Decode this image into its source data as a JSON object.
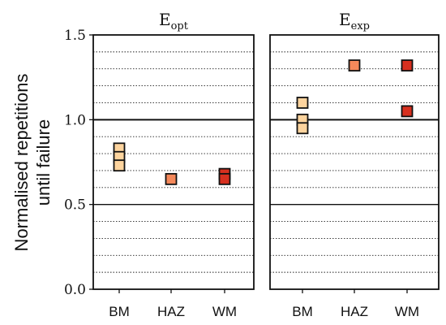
{
  "chart_data": {
    "type": "scatter",
    "ylabel_lines": [
      "Normalised repetitions",
      "until failure"
    ],
    "ylim": [
      0,
      1.5
    ],
    "yticks": [
      {
        "value": 0,
        "label": "0.0"
      },
      {
        "value": 0.5,
        "label": "0.5"
      },
      {
        "value": 1.0,
        "label": "1.0"
      },
      {
        "value": 1.5,
        "label": "1.5"
      }
    ],
    "minor_gridlines": [
      0.1,
      0.2,
      0.3,
      0.4,
      0.6,
      0.7,
      0.8,
      0.9,
      1.1,
      1.2,
      1.3,
      1.4
    ],
    "solid_reference_lines": [
      0.5,
      1.0
    ],
    "categories": [
      "BM",
      "HAZ",
      "WM"
    ],
    "category_colors": {
      "BM": "#fdd49e",
      "HAZ": "#f4885a",
      "WM": "#d7301f"
    },
    "marker_edge_color": "#111111",
    "panels": [
      {
        "title_main": "E",
        "title_sub": "opt",
        "points": [
          {
            "category": "BM",
            "values": [
              0.83,
              0.78,
              0.73
            ]
          },
          {
            "category": "HAZ",
            "values": [
              0.65
            ]
          },
          {
            "category": "WM",
            "values": [
              0.68,
              0.65
            ]
          }
        ]
      },
      {
        "title_main": "E",
        "title_sub": "exp",
        "points": [
          {
            "category": "BM",
            "values": [
              1.1,
              1.0,
              0.95
            ]
          },
          {
            "category": "HAZ",
            "values": [
              1.32
            ]
          },
          {
            "category": "WM",
            "values": [
              1.32,
              1.05
            ]
          }
        ]
      }
    ]
  }
}
